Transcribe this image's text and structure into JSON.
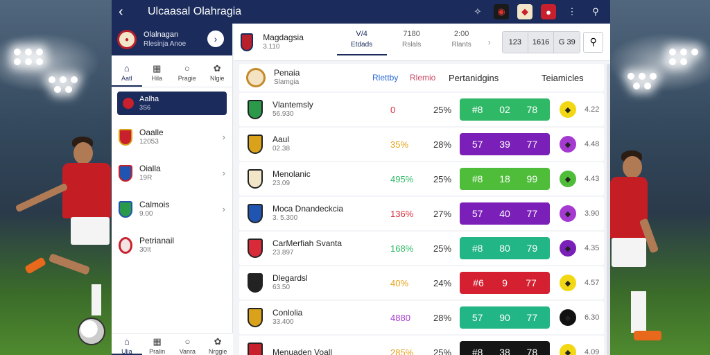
{
  "window": {
    "title": "Ulcaasal Olahragia"
  },
  "profile": {
    "name": "Olalnagan",
    "sub": "Rlesinja Anoe"
  },
  "left_tabs": [
    {
      "label": "Aatl",
      "icon": "home-icon"
    },
    {
      "label": "Hila",
      "icon": "document-icon"
    },
    {
      "label": "Pragie",
      "icon": "chat-icon"
    },
    {
      "label": "Nlgie",
      "icon": "group-icon"
    }
  ],
  "left_selected": {
    "name": "Aalha",
    "sub": "3S6"
  },
  "left_items": [
    {
      "name": "Oaalle",
      "sub": "12053",
      "color": "#c8202c"
    },
    {
      "name": "Oialla",
      "sub": "19R",
      "color": "#c8202c"
    },
    {
      "name": "Calmois",
      "sub": "9.00",
      "color": "#1f55b0"
    },
    {
      "name": "Petrianail",
      "sub": "30It",
      "color": "#c8202c"
    }
  ],
  "bottom_nav": [
    {
      "label": "Ulia",
      "icon": "home-icon"
    },
    {
      "label": "Pralin",
      "icon": "document-icon"
    },
    {
      "label": "Vanra",
      "icon": "chat-icon"
    },
    {
      "label": "Nrggie",
      "icon": "group-icon"
    }
  ],
  "main_header": {
    "name": "Magdagsia",
    "sub": "3.110",
    "tabs": [
      {
        "value": "V/4",
        "label": "Etdads"
      },
      {
        "value": "7180",
        "label": "Rslals"
      },
      {
        "value": "2:00",
        "label": "Rlants"
      }
    ],
    "scores": [
      "123",
      "1616",
      "G 39"
    ]
  },
  "table_header": {
    "name": "Penaia",
    "sub": "Slamgia",
    "col1": "Rlettby",
    "col2": "Rlemio",
    "col3": "Pertanidgins",
    "col4": "Teiamicles"
  },
  "rows": [
    {
      "name": "Vlantemsly",
      "sub": "56.930",
      "pct": "0",
      "pct_color": "#d92a3a",
      "p2": "25%",
      "bar_color": "#2fb866",
      "bar": [
        "#8",
        "02",
        "78"
      ],
      "badge_color": "#f2d814",
      "odds": "4.22",
      "shield": "#2a9a4a"
    },
    {
      "name": "Aaul",
      "sub": "02.38",
      "pct": "35%",
      "pct_color": "#e6a21a",
      "p2": "28%",
      "bar_color": "#7a1fb8",
      "bar": [
        "57",
        "39",
        "77"
      ],
      "badge_color": "#a43ad0",
      "odds": "4.48",
      "shield": "#d9a21a"
    },
    {
      "name": "Menolanic",
      "sub": "23.09",
      "pct": "495%",
      "pct_color": "#2fb866",
      "p2": "25%",
      "bar_color": "#4fbd3a",
      "bar": [
        "#8",
        "18",
        "99"
      ],
      "badge_color": "#4fbd3a",
      "odds": "4.43",
      "shield": "#f2e6c9"
    },
    {
      "name": "Moca Dnandeckcia",
      "sub": "3. 5.300",
      "pct": "136%",
      "pct_color": "#d92a3a",
      "p2": "27%",
      "bar_color": "#7a1fb8",
      "bar": [
        "57",
        "40",
        "77"
      ],
      "badge_color": "#a43ad0",
      "odds": "3.90",
      "shield": "#1f55b0"
    },
    {
      "name": "CarMerfiah Svanta",
      "sub": "23.897",
      "pct": "168%",
      "pct_color": "#2fb866",
      "p2": "25%",
      "bar_color": "#22b585",
      "bar": [
        "#8",
        "80",
        "79"
      ],
      "badge_color": "#7a1fb8",
      "odds": "4.35",
      "shield": "#d92a3a"
    },
    {
      "name": "Dlegardsl",
      "sub": "63.50",
      "pct": "40%",
      "pct_color": "#e6a21a",
      "p2": "24%",
      "bar_color": "#d42030",
      "bar": [
        "#6",
        "9",
        "77"
      ],
      "badge_color": "#f2d814",
      "odds": "4.57",
      "shield": "#222222"
    },
    {
      "name": "Conlolia",
      "sub": "33.400",
      "pct": "4880",
      "pct_color": "#a43ad0",
      "p2": "28%",
      "bar_color": "#22b585",
      "bar": [
        "57",
        "90",
        "77"
      ],
      "badge_color": "#111111",
      "odds": "6.30",
      "shield": "#d9a21a"
    },
    {
      "name": "Menuaden Voall",
      "sub": "",
      "pct": "285%",
      "pct_color": "#e6a21a",
      "p2": "25%",
      "bar_color": "#151515",
      "bar": [
        "#8",
        "38",
        "78"
      ],
      "badge_color": "#f2d814",
      "odds": "4.09",
      "shield": "#c8202c"
    }
  ]
}
